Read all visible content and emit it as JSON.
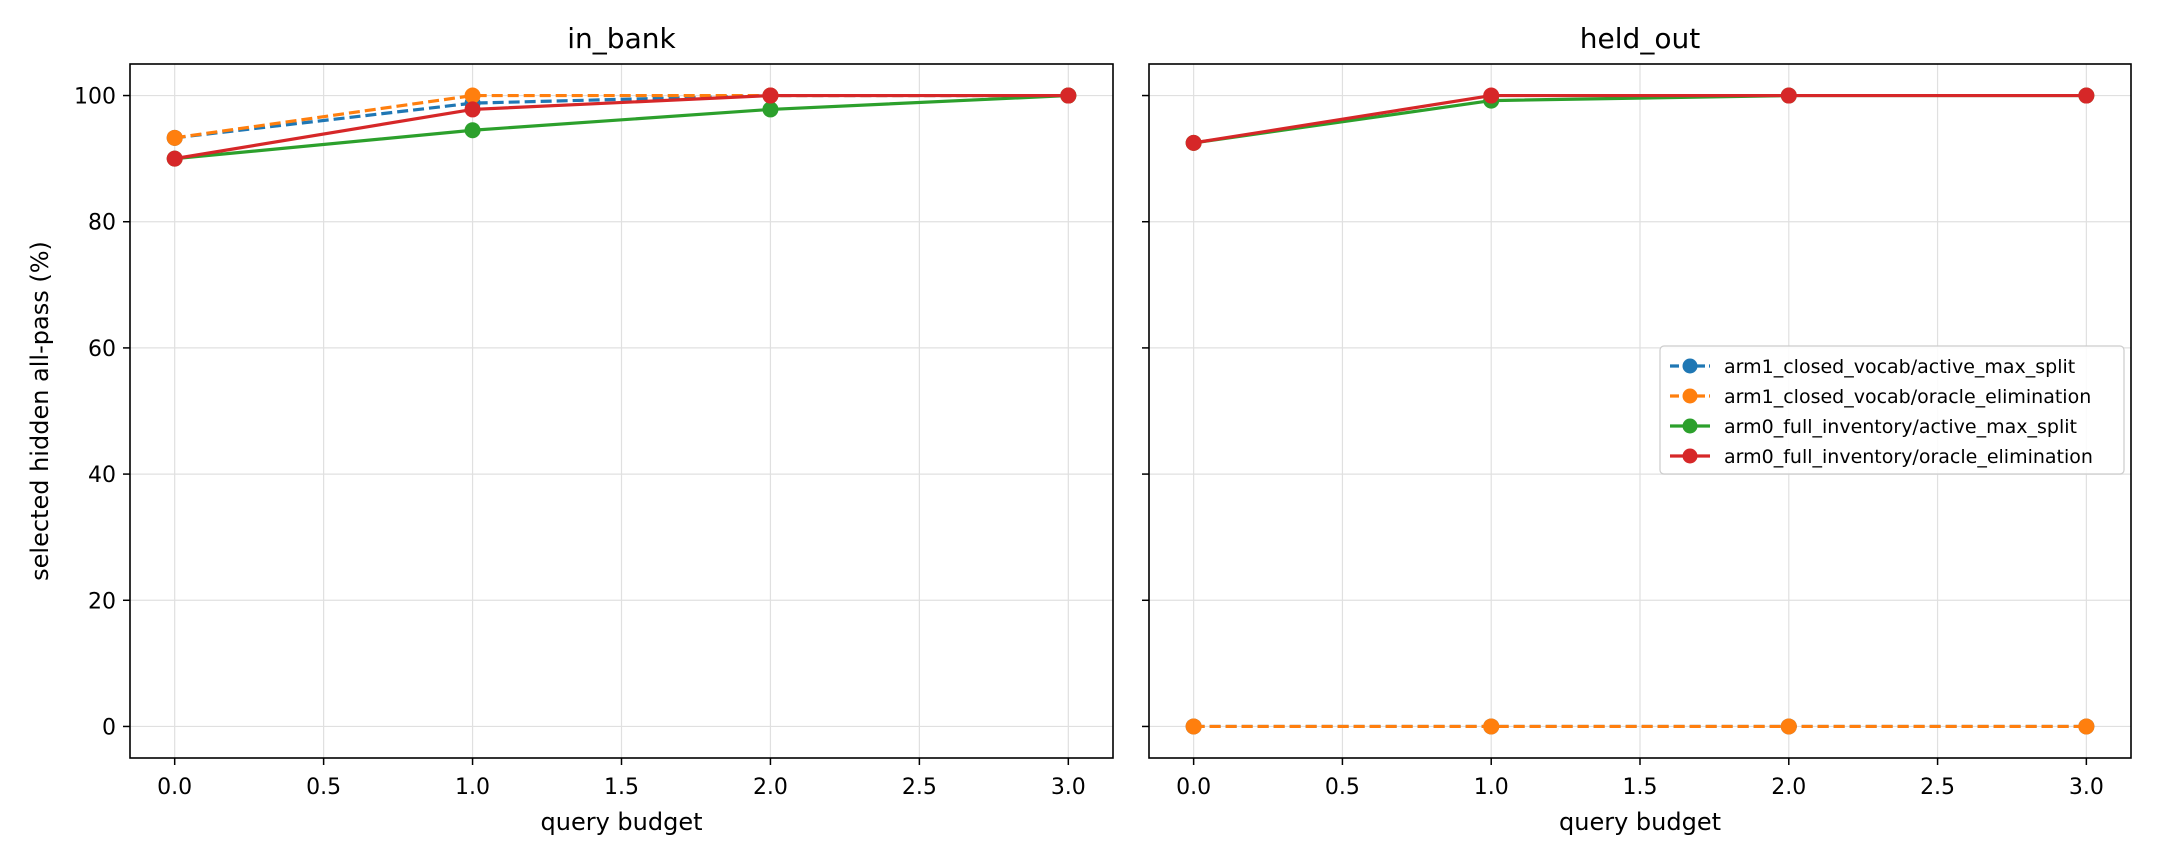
{
  "chart_data": [
    {
      "type": "line",
      "title": "in_bank",
      "xlabel": "query budget",
      "ylabel": "selected hidden all-pass (%)",
      "xlim": [
        -0.15,
        3.15
      ],
      "ylim": [
        -5,
        105
      ],
      "xticks": [
        "0.0",
        "0.5",
        "1.0",
        "1.5",
        "2.0",
        "2.5",
        "3.0"
      ],
      "yticks": [
        "0",
        "20",
        "40",
        "60",
        "80",
        "100"
      ],
      "grid": true,
      "x": [
        0,
        1,
        2,
        3
      ],
      "series": [
        {
          "name": "arm1_closed_vocab/active_max_split",
          "color": "#1f77b4",
          "dashed": true,
          "values": [
            93.3,
            98.8,
            100,
            100
          ]
        },
        {
          "name": "arm1_closed_vocab/oracle_elimination",
          "color": "#ff7f0e",
          "dashed": true,
          "values": [
            93.3,
            100,
            100,
            100
          ]
        },
        {
          "name": "arm0_full_inventory/active_max_split",
          "color": "#2ca02c",
          "dashed": false,
          "values": [
            90,
            94.5,
            97.8,
            100
          ]
        },
        {
          "name": "arm0_full_inventory/oracle_elimination",
          "color": "#d62728",
          "dashed": false,
          "values": [
            90,
            97.8,
            100,
            100
          ]
        }
      ]
    },
    {
      "type": "line",
      "title": "held_out",
      "xlabel": "query budget",
      "xlim": [
        -0.15,
        3.15
      ],
      "ylim": [
        -5,
        105
      ],
      "xticks": [
        "0.0",
        "0.5",
        "1.0",
        "1.5",
        "2.0",
        "2.5",
        "3.0"
      ],
      "grid": true,
      "legend": "center-right",
      "x": [
        0,
        1,
        2,
        3
      ],
      "series": [
        {
          "name": "arm1_closed_vocab/active_max_split",
          "color": "#1f77b4",
          "dashed": true,
          "values": [
            0,
            0,
            0,
            0
          ]
        },
        {
          "name": "arm1_closed_vocab/oracle_elimination",
          "color": "#ff7f0e",
          "dashed": true,
          "values": [
            0,
            0,
            0,
            0
          ]
        },
        {
          "name": "arm0_full_inventory/active_max_split",
          "color": "#2ca02c",
          "dashed": false,
          "values": [
            92.5,
            99.2,
            100,
            100
          ]
        },
        {
          "name": "arm0_full_inventory/oracle_elimination",
          "color": "#d62728",
          "dashed": false,
          "values": [
            92.5,
            100,
            100,
            100
          ]
        }
      ]
    }
  ]
}
